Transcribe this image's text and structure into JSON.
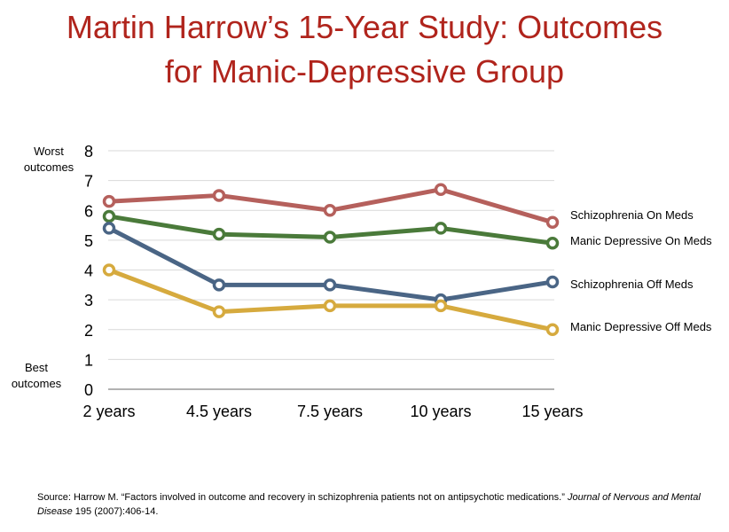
{
  "title_line1": "Martin Harrow’s 15-Year Study: Outcomes",
  "title_line2": "for Manic-Depressive Group",
  "y_top_note": [
    "Worst",
    "outcomes"
  ],
  "y_bottom_note": [
    "Best",
    "outcomes"
  ],
  "source": {
    "prefix": "Source: Harrow M. “Factors involved in outcome and recovery in schizophrenia patients not on antipsychotic medications.” ",
    "journal": "Journal of Nervous and Mental Disease",
    "suffix": " 195 (2007):406-14."
  },
  "chart_data": {
    "type": "line",
    "categories": [
      "2 years",
      "4.5 years",
      "7.5 years",
      "10 years",
      "15 years"
    ],
    "ylim": [
      0,
      8
    ],
    "yticks": [
      "0",
      "1",
      "2",
      "3",
      "4",
      "5",
      "6",
      "7",
      "8"
    ],
    "grid": true,
    "legend": "right, labels at series ends",
    "series": [
      {
        "name": "Schizophrenia On Meds",
        "color": "#b5605c",
        "values": [
          6.3,
          6.5,
          6.0,
          6.7,
          5.6
        ]
      },
      {
        "name": "Manic Depressive On Meds",
        "color": "#4a7a3a",
        "values": [
          5.8,
          5.2,
          5.1,
          5.4,
          4.9
        ]
      },
      {
        "name": "Schizophrenia Off Meds",
        "color": "#4a6585",
        "values": [
          5.4,
          3.5,
          3.5,
          3.0,
          3.6
        ]
      },
      {
        "name": "Manic Depressive Off Meds",
        "color": "#d6aa3e",
        "values": [
          4.0,
          2.6,
          2.8,
          2.8,
          2.0
        ]
      }
    ]
  }
}
